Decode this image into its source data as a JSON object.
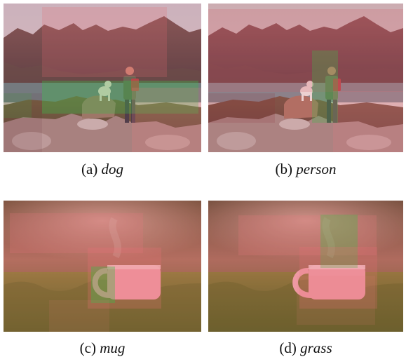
{
  "figure": {
    "panels": [
      {
        "id": "a",
        "label": "(a)",
        "term": "dog"
      },
      {
        "id": "b",
        "label": "(b)",
        "term": "person"
      },
      {
        "id": "c",
        "label": "(c)",
        "term": "mug"
      },
      {
        "id": "d",
        "label": "(d)",
        "term": "grass"
      }
    ]
  },
  "colors": {
    "overlay_red": "#e04a4a",
    "overlay_green": "#3bbf4a",
    "sky": "#d8d1cf",
    "mountain": "#6b4b49",
    "lake": "#547a82",
    "rock": "#9f8b86",
    "grass": "#6f6a2c",
    "cup": "#f1a0ac"
  }
}
